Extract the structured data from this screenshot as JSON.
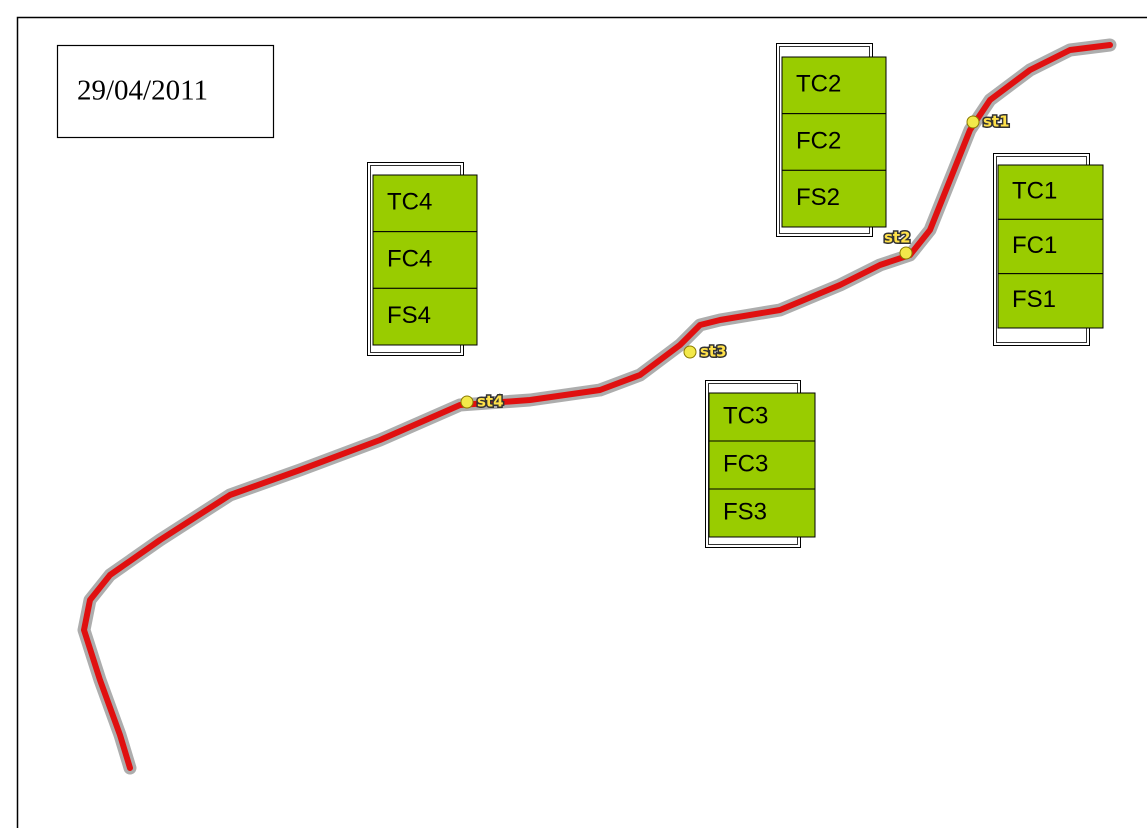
{
  "date": "29/04/2011",
  "stations": [
    {
      "label": "st1"
    },
    {
      "label": "st2"
    },
    {
      "label": "st3"
    },
    {
      "label": "st4"
    }
  ],
  "panels": [
    {
      "rows": [
        "TC1",
        "FC1",
        "FS1"
      ]
    },
    {
      "rows": [
        "TC2",
        "FC2",
        "FS2"
      ]
    },
    {
      "rows": [
        "TC3",
        "FC3",
        "FS3"
      ]
    },
    {
      "rows": [
        "TC4",
        "FC4",
        "FS4"
      ]
    }
  ]
}
